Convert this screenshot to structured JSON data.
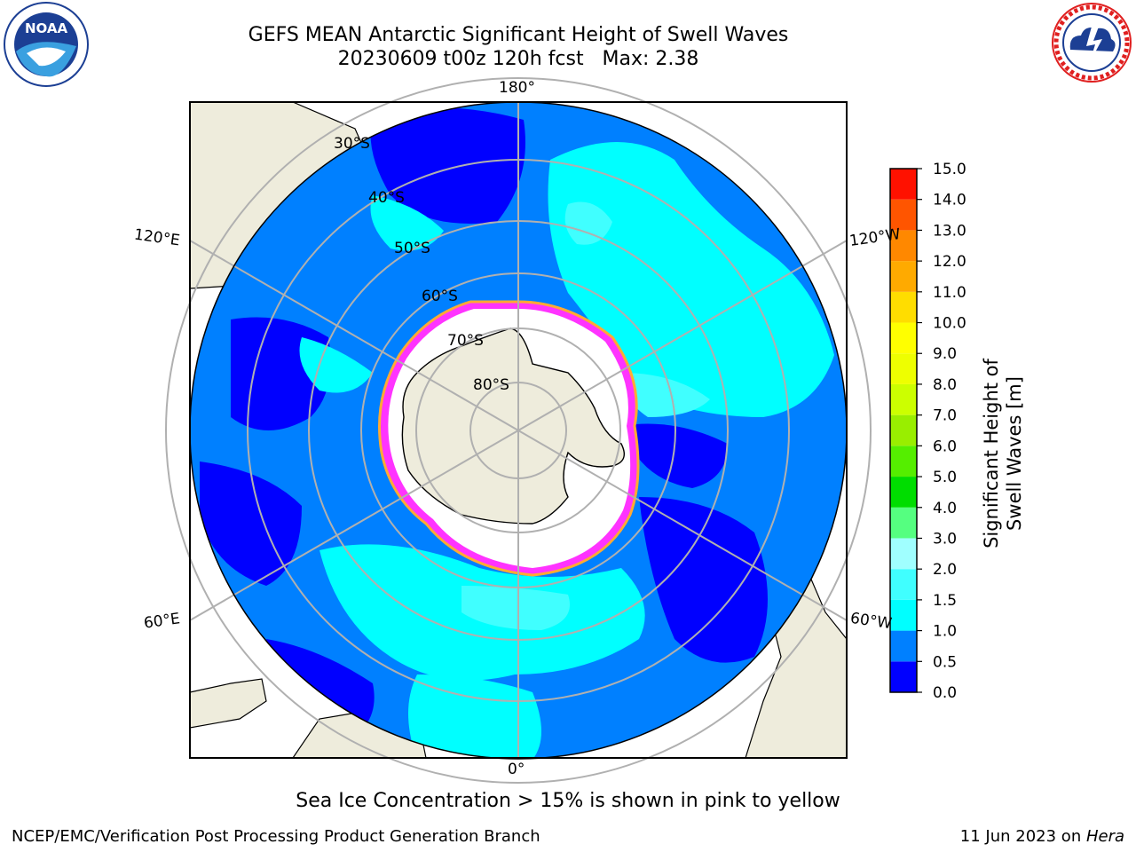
{
  "header": {
    "title_line1": "GEFS MEAN Antarctic Significant Height of Swell Waves",
    "title_line2": "20230609 t00z 120h fcst   Max: 2.38"
  },
  "logos": {
    "left": {
      "icon": "noaa-logo-icon",
      "text": "NOAA",
      "ring_text": "NATIONAL OCEANIC AND ATMOSPHERIC ADMINISTRATION · U.S. DEPARTMENT OF COMMERCE"
    },
    "right": {
      "icon": "nws-logo-icon",
      "ring_text": "NATIONAL WEATHER SERVICE"
    }
  },
  "map": {
    "projection": "south-polar-stereographic",
    "longitude_labels": {
      "top": "180°",
      "upper_left": "120°E",
      "upper_right": "120°W",
      "lower_left": "60°E",
      "lower_right": "60°W",
      "bottom": "0°"
    },
    "latitude_labels": [
      "30°S",
      "40°S",
      "50°S",
      "60°S",
      "70°S",
      "80°S"
    ],
    "sea_ice_colors": [
      "#ff33ff",
      "#ffaa33",
      "#ffff66"
    ],
    "land_color": "#eeecdc"
  },
  "colorbar": {
    "title": "Significant Height of Swell Waves [m]",
    "tick_labels": [
      "0.0",
      "0.5",
      "1.0",
      "1.5",
      "2.0",
      "3.0",
      "4.0",
      "5.0",
      "6.0",
      "7.0",
      "8.0",
      "9.0",
      "10.0",
      "11.0",
      "12.0",
      "13.0",
      "14.0",
      "15.0"
    ],
    "colors": [
      "#0000ff",
      "#0080ff",
      "#00ffff",
      "#40ffff",
      "#a0ffff",
      "#55ff80",
      "#00dd00",
      "#55ee00",
      "#99ee00",
      "#ccff00",
      "#eeff00",
      "#ffff00",
      "#ffdd00",
      "#ffaa00",
      "#ff8800",
      "#ff5500",
      "#ff1100"
    ]
  },
  "footer": {
    "note": "Sea Ice Concentration > 15% is shown in pink to yellow",
    "credit": "NCEP/EMC/Verification Post Processing Product Generation Branch",
    "date_text": "11 Jun 2023 on ",
    "machine": "Hera"
  }
}
